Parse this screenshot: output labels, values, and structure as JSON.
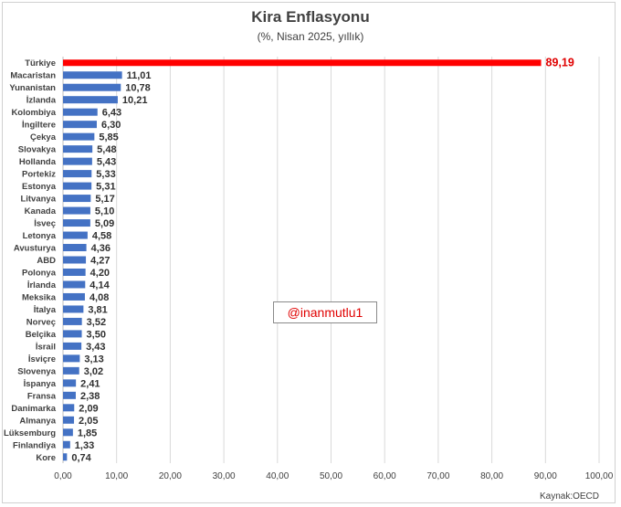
{
  "title": "Kira Enflasyonu",
  "subtitle": "(%, Nisan 2025, yıllık)",
  "source": "Kaynak:OECD",
  "watermark": "@inanmutlu1",
  "colors": {
    "bar": "#4472c4",
    "highlight_bar": "#ff0000",
    "highlight_label": "#e00000",
    "grid": "#d9d9d9",
    "text": "#404040"
  },
  "chart_data": {
    "type": "bar",
    "orientation": "horizontal",
    "title": "Kira Enflasyonu",
    "subtitle": "(%, Nisan 2025, yıllık)",
    "xlim": [
      0,
      100
    ],
    "xticks": [
      "0,00",
      "10,00",
      "20,00",
      "30,00",
      "40,00",
      "50,00",
      "60,00",
      "70,00",
      "80,00",
      "90,00",
      "100,00"
    ],
    "grid": true,
    "highlight": "Türkiye",
    "categories": [
      "Türkiye",
      "Macaristan",
      "Yunanistan",
      "İzlanda",
      "Kolombiya",
      "İngiltere",
      "Çekya",
      "Slovakya",
      "Hollanda",
      "Portekiz",
      "Estonya",
      "Litvanya",
      "Kanada",
      "İsveç",
      "Letonya",
      "Avusturya",
      "ABD",
      "Polonya",
      "İrlanda",
      "Meksika",
      "İtalya",
      "Norveç",
      "Belçika",
      "İsrail",
      "İsviçre",
      "Slovenya",
      "İspanya",
      "Fransa",
      "Danimarka",
      "Almanya",
      "Lüksemburg",
      "Finlandiya",
      "Kore"
    ],
    "values": [
      89.19,
      11.01,
      10.78,
      10.21,
      6.43,
      6.3,
      5.85,
      5.48,
      5.43,
      5.33,
      5.31,
      5.17,
      5.1,
      5.09,
      4.58,
      4.36,
      4.27,
      4.2,
      4.14,
      4.08,
      3.81,
      3.52,
      3.5,
      3.43,
      3.13,
      3.02,
      2.41,
      2.38,
      2.09,
      2.05,
      1.85,
      1.33,
      0.74
    ],
    "value_labels": [
      "89,19",
      "11,01",
      "10,78",
      "10,21",
      "6,43",
      "6,30",
      "5,85",
      "5,48",
      "5,43",
      "5,33",
      "5,31",
      "5,17",
      "5,10",
      "5,09",
      "4,58",
      "4,36",
      "4,27",
      "4,20",
      "4,14",
      "4,08",
      "3,81",
      "3,52",
      "3,50",
      "3,43",
      "3,13",
      "3,02",
      "2,41",
      "2,38",
      "2,09",
      "2,05",
      "1,85",
      "1,33",
      "0,74"
    ]
  }
}
